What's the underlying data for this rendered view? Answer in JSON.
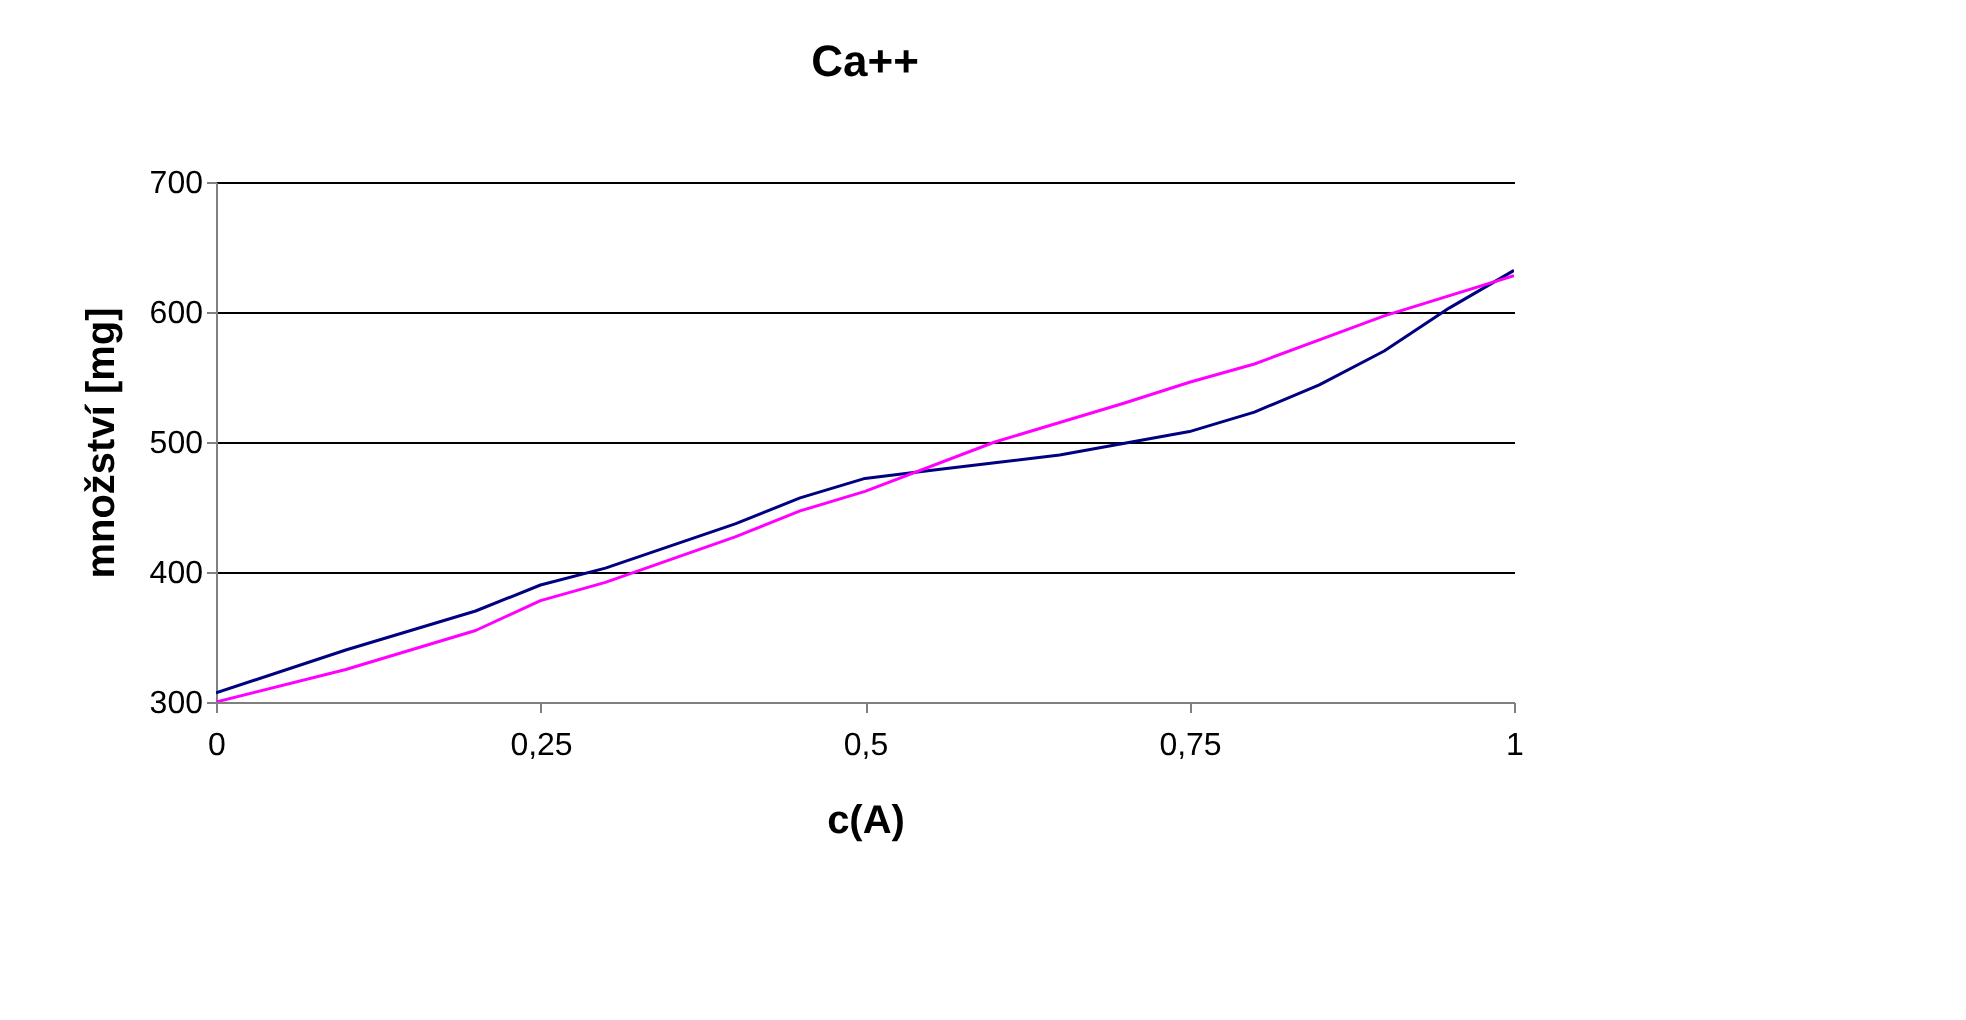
{
  "chart_data": {
    "type": "line",
    "title": "Ca++",
    "xlabel": "c(A)",
    "ylabel": "množství [mg]",
    "xlim": [
      0,
      1
    ],
    "xticks": [
      0,
      {
        "value": 0.25,
        "label": "0,25"
      },
      {
        "value": 0.5,
        "label": "0,5"
      },
      {
        "value": 0.75,
        "label": "0,75"
      },
      1
    ],
    "ylim": [
      300,
      700
    ],
    "yticks": [
      300,
      400,
      500,
      600,
      700
    ],
    "grid": "y",
    "series": [
      {
        "color": "#000080",
        "x": [
          0,
          0.1,
          0.2,
          0.25,
          0.3,
          0.4,
          0.45,
          0.5,
          0.55,
          0.6,
          0.65,
          0.7,
          0.75,
          0.8,
          0.85,
          0.9,
          0.95,
          1
        ],
        "values": [
          307,
          340,
          370,
          390,
          403,
          437,
          457,
          472,
          478,
          484,
          490,
          499,
          508,
          523,
          544,
          570,
          603,
          632
        ]
      },
      {
        "color": "#ff00ff",
        "x": [
          0,
          0.1,
          0.2,
          0.25,
          0.3,
          0.4,
          0.45,
          0.5,
          0.6,
          0.7,
          0.75,
          0.8,
          0.9,
          1
        ],
        "values": [
          300,
          325,
          355,
          378,
          392,
          427,
          447,
          462,
          500,
          530,
          546,
          560,
          597,
          628
        ]
      }
    ]
  }
}
